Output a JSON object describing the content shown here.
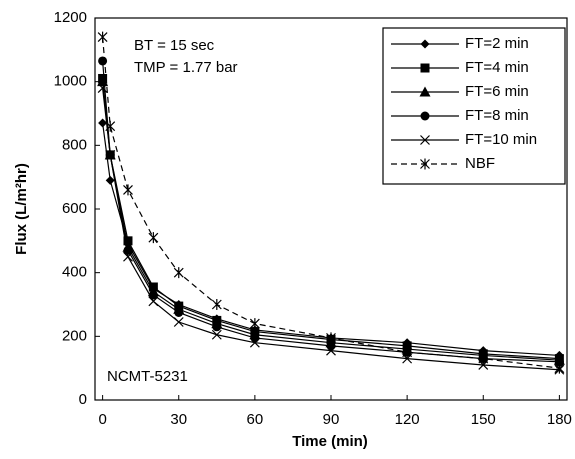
{
  "chart_data": {
    "type": "line",
    "x_label": "Time (min)",
    "y_label": "Flux (L/m²hr)",
    "annotations": [
      "BT = 15 sec",
      "TMP = 1.77 bar",
      "NCMT-5231"
    ],
    "x": [
      0,
      3,
      10,
      20,
      30,
      45,
      60,
      90,
      120,
      150,
      180
    ],
    "series": [
      {
        "name": "FT=2 min",
        "color": "#000000",
        "marker": "diamond",
        "dash": false,
        "values": [
          870,
          690,
          490,
          350,
          300,
          255,
          220,
          195,
          180,
          155,
          140
        ]
      },
      {
        "name": "FT=4 min",
        "color": "#000000",
        "marker": "square",
        "dash": false,
        "values": [
          1010,
          770,
          500,
          355,
          295,
          250,
          215,
          190,
          170,
          145,
          130
        ]
      },
      {
        "name": "FT=6 min",
        "color": "#000000",
        "marker": "triangle",
        "dash": false,
        "values": [
          1000,
          770,
          480,
          340,
          285,
          240,
          205,
          180,
          160,
          140,
          125
        ]
      },
      {
        "name": "FT=8 min",
        "color": "#000000",
        "marker": "circle",
        "dash": false,
        "values": [
          1065,
          770,
          470,
          330,
          275,
          230,
          195,
          170,
          150,
          130,
          120
        ]
      },
      {
        "name": "FT=10 min",
        "color": "#000000",
        "marker": "x",
        "dash": false,
        "values": [
          980,
          770,
          450,
          310,
          245,
          205,
          180,
          155,
          130,
          110,
          95
        ]
      },
      {
        "name": "NBF",
        "color": "#000000",
        "marker": "star",
        "dash": true,
        "values": [
          1140,
          860,
          660,
          510,
          400,
          300,
          240,
          195,
          150,
          130,
          100
        ]
      }
    ],
    "xlim": [
      -3,
      183
    ],
    "ylim": [
      0,
      1200
    ],
    "xticks": [
      0,
      30,
      60,
      90,
      120,
      150,
      180
    ],
    "yticks": [
      0,
      200,
      400,
      600,
      800,
      1000,
      1200
    ],
    "grid": false,
    "legend": "upper right"
  }
}
